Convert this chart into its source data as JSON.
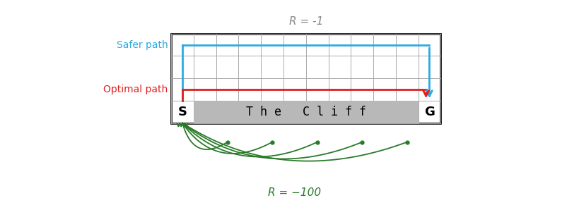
{
  "title": "R = -1",
  "title_color": "#888888",
  "grid_rows": 4,
  "grid_cols": 12,
  "cliff_label": "T h e   C l i f f",
  "cliff_color": "#b8b8b8",
  "safer_path_color": "#29aae2",
  "optimal_path_color": "#e02020",
  "cliff_arc_color": "#2a7a2a",
  "R_minus100_color": "#2a7a2a",
  "R_minus100_label": "R = −100",
  "safer_path_label": "Safer path",
  "optimal_path_label": "Optimal path",
  "bg_color": "#ffffff",
  "grid_color": "#aaaaaa",
  "border_color": "#111111",
  "S_label": "S",
  "G_label": "G",
  "xlim": [
    -3.5,
    13.5
  ],
  "ylim": [
    -4.2,
    5.5
  ],
  "figsize": [
    8.02,
    3.08
  ],
  "dpi": 100
}
